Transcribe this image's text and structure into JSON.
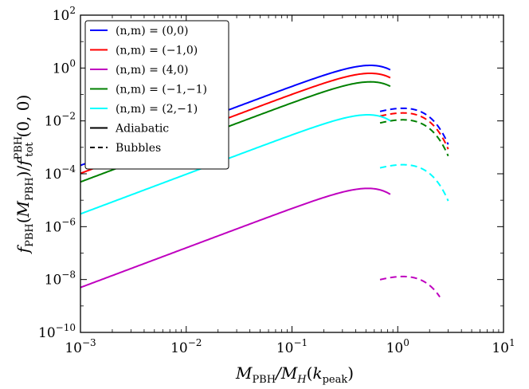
{
  "chart_data": {
    "type": "line",
    "xscale": "log",
    "yscale": "log",
    "xlim": [
      0.001,
      10
    ],
    "ylim": [
      1e-10,
      100
    ],
    "xlabel": "M_PBH/M_H(k_peak)",
    "ylabel": "f_PBH(M_PBH)/f_tot^PBH(0,0)",
    "x_ticks": [
      {
        "value": 0.001,
        "base": "10",
        "exp": "−3"
      },
      {
        "value": 0.01,
        "base": "10",
        "exp": "−2"
      },
      {
        "value": 0.1,
        "base": "10",
        "exp": "−1"
      },
      {
        "value": 1,
        "base": "10",
        "exp": "0"
      },
      {
        "value": 10,
        "base": "10",
        "exp": "1"
      }
    ],
    "y_ticks": [
      {
        "value": 1e-10,
        "base": "10",
        "exp": "−10"
      },
      {
        "value": 1e-08,
        "base": "10",
        "exp": "−8"
      },
      {
        "value": 1e-06,
        "base": "10",
        "exp": "−6"
      },
      {
        "value": 0.0001,
        "base": "10",
        "exp": "−4"
      },
      {
        "value": 0.01,
        "base": "10",
        "exp": "−2"
      },
      {
        "value": 1,
        "base": "10",
        "exp": "0"
      },
      {
        "value": 100,
        "base": "10",
        "exp": "2"
      }
    ],
    "grid": false,
    "legend_position": "top-left",
    "style_legend": [
      {
        "label": "Adiabatic",
        "dash": "solid"
      },
      {
        "label": "Bubbles",
        "dash": "dashed"
      }
    ],
    "series": [
      {
        "name": "(n,m) = (0,0)",
        "color": "#0000ff",
        "adiabatic": {
          "x_start": 0.001,
          "x_end": 0.85,
          "peak_x": 0.55,
          "peak_y": 1.26,
          "slope": 1.5,
          "drop_scale": 0.08
        },
        "bubbles": {
          "x_start": 0.68,
          "x_end": 3.0,
          "peak_x": 1.12,
          "peak_y": 0.03,
          "slope": 1.5,
          "drop_scale": 0.25
        }
      },
      {
        "name": "(n,m) = (−1,0)",
        "color": "#ff0000",
        "adiabatic": {
          "x_start": 0.001,
          "x_end": 0.85,
          "peak_x": 0.55,
          "peak_y": 0.63,
          "slope": 1.5,
          "drop_scale": 0.08
        },
        "bubbles": {
          "x_start": 0.68,
          "x_end": 3.0,
          "peak_x": 1.12,
          "peak_y": 0.02,
          "slope": 1.5,
          "drop_scale": 0.25
        }
      },
      {
        "name": "(n,m) = (4,0)",
        "color": "#bf00bf",
        "adiabatic": {
          "x_start": 0.001,
          "x_end": 0.85,
          "peak_x": 0.52,
          "peak_y": 2.8e-05,
          "slope": 1.5,
          "drop_scale": 0.08
        },
        "bubbles": {
          "x_start": 0.68,
          "x_end": 2.5,
          "peak_x": 1.12,
          "peak_y": 1.3e-08,
          "slope": 1.5,
          "drop_scale": 0.25
        }
      },
      {
        "name": "(n,m) = (−1,−1)",
        "color": "#008000",
        "adiabatic": {
          "x_start": 0.001,
          "x_end": 0.85,
          "peak_x": 0.55,
          "peak_y": 0.3,
          "slope": 1.5,
          "drop_scale": 0.08
        },
        "bubbles": {
          "x_start": 0.68,
          "x_end": 3.0,
          "peak_x": 1.12,
          "peak_y": 0.011,
          "slope": 1.5,
          "drop_scale": 0.25
        }
      },
      {
        "name": "(n,m) = (2,−1)",
        "color": "#00ffff",
        "adiabatic": {
          "x_start": 0.001,
          "x_end": 0.85,
          "peak_x": 0.52,
          "peak_y": 0.017,
          "slope": 1.5,
          "drop_scale": 0.08
        },
        "bubbles": {
          "x_start": 0.68,
          "x_end": 3.0,
          "peak_x": 1.12,
          "peak_y": 0.00022,
          "slope": 1.5,
          "drop_scale": 0.25
        }
      }
    ]
  }
}
